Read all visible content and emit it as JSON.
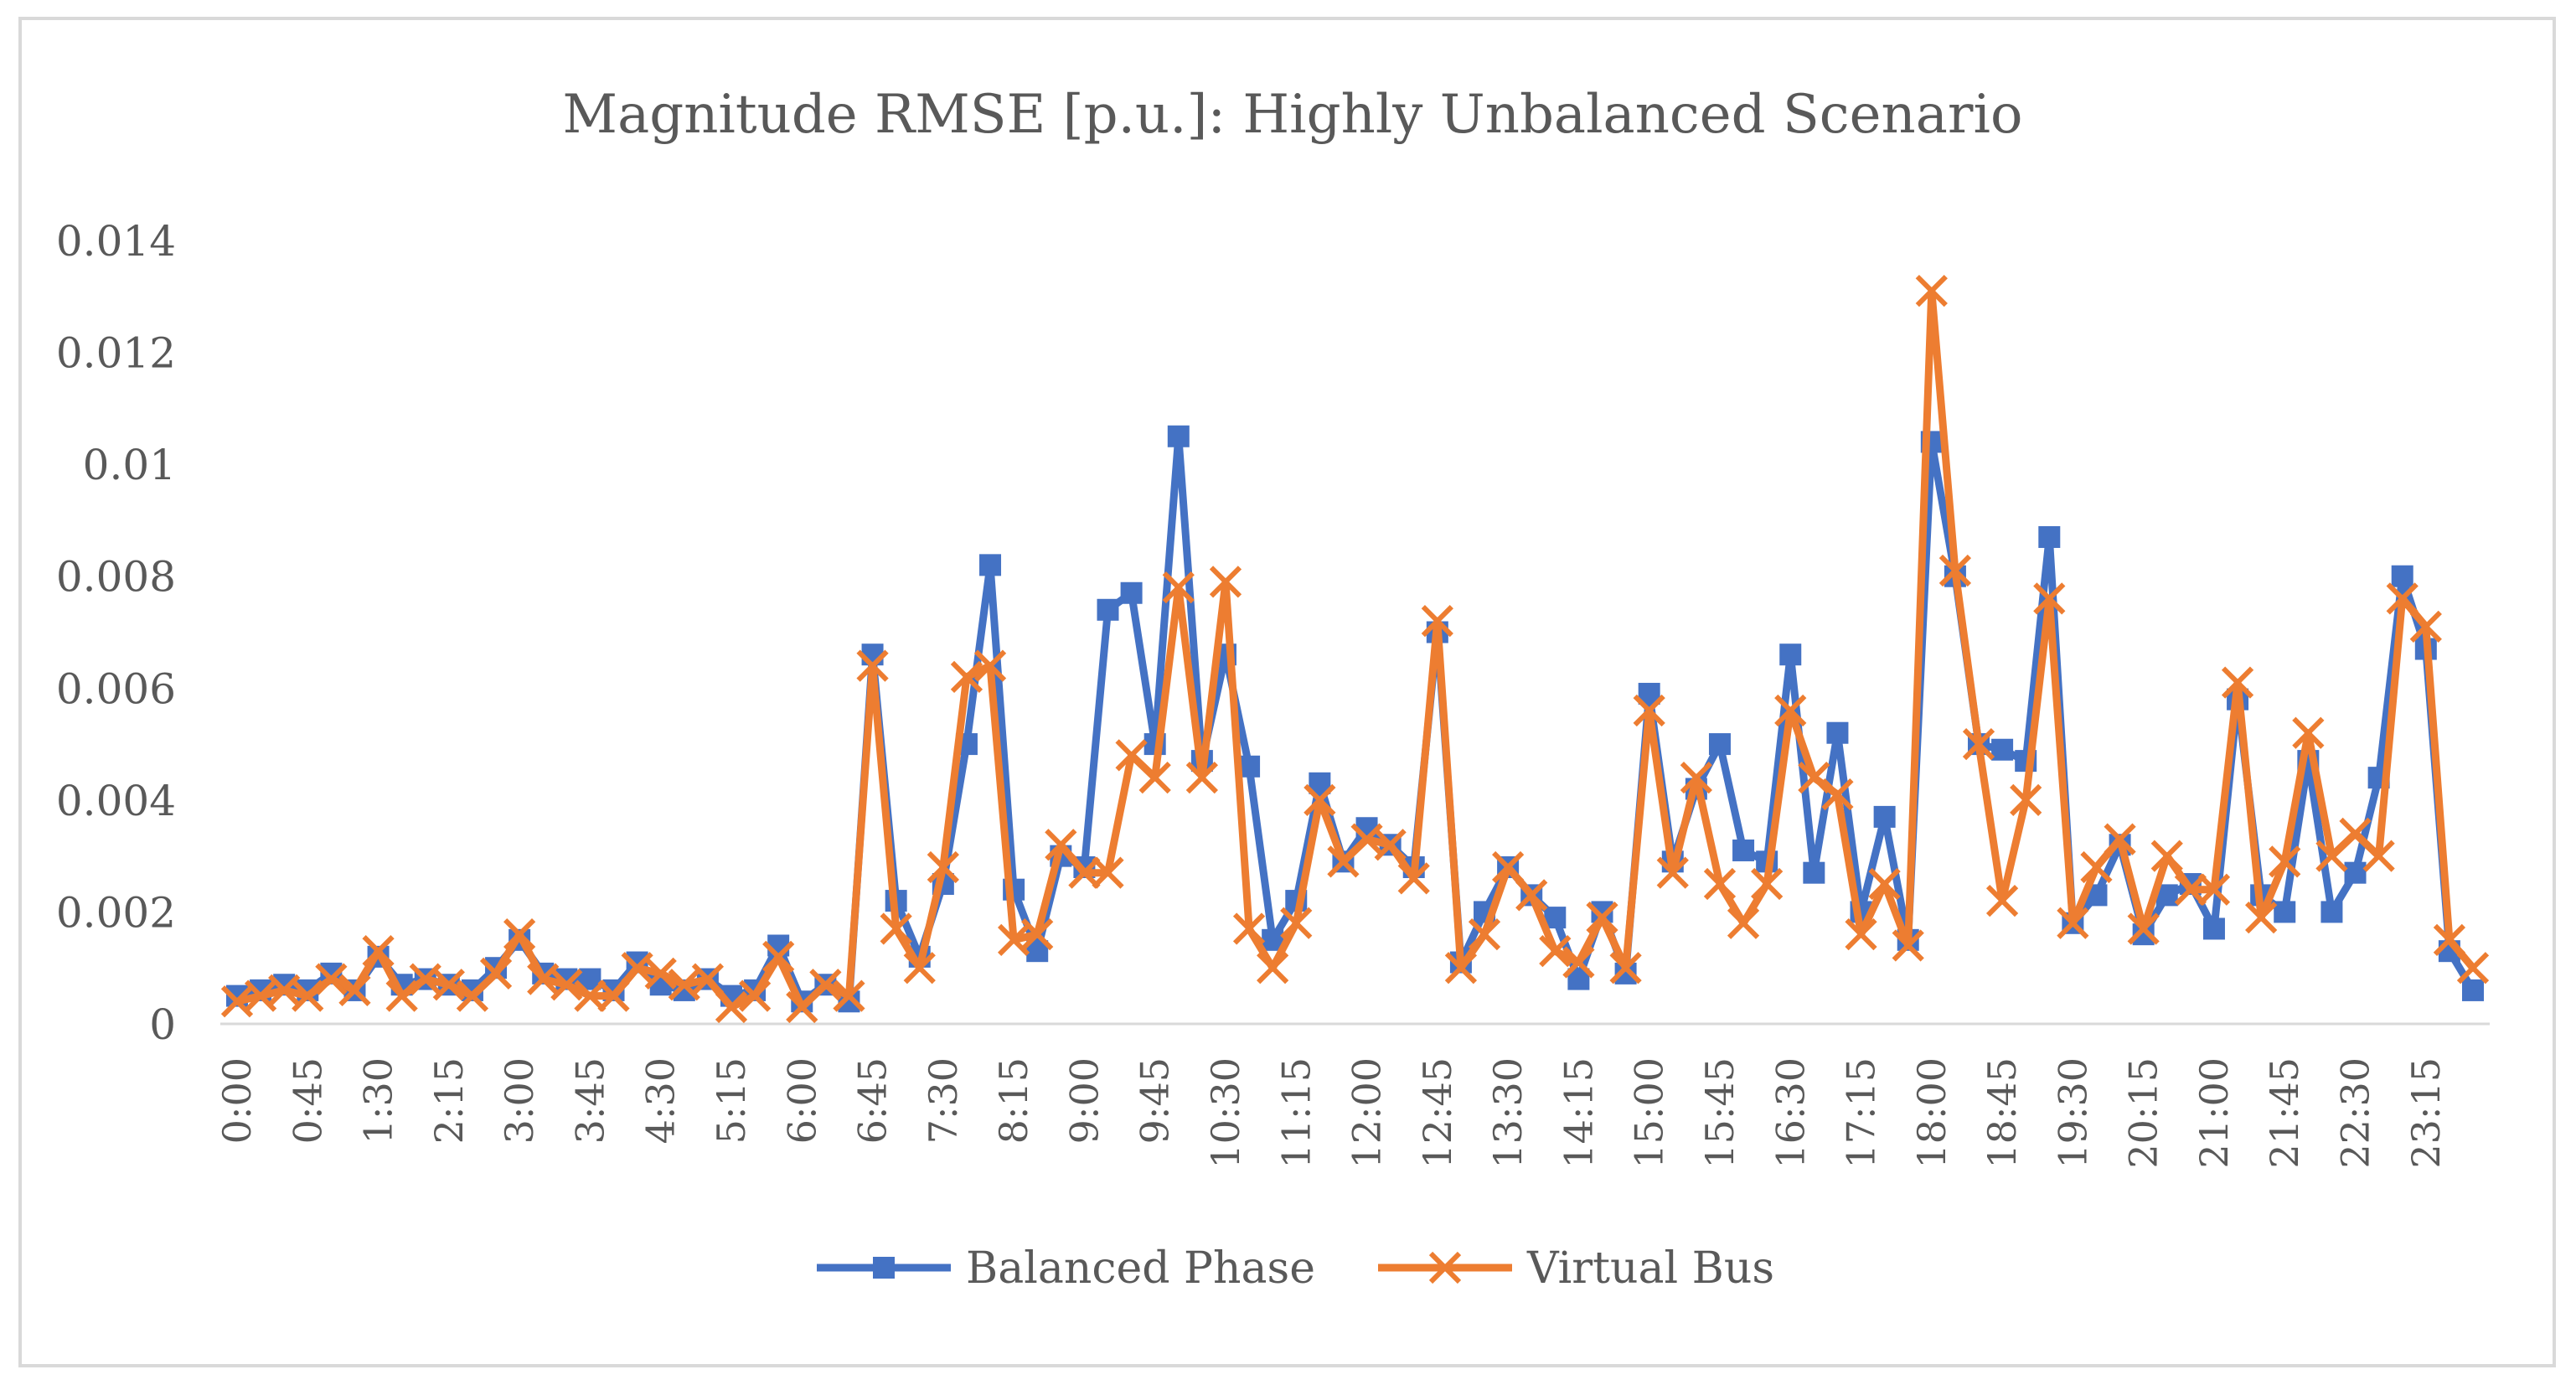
{
  "chart_data": {
    "type": "line",
    "title": "Magnitude RMSE [p.u.]: Highly Unbalanced Scenario",
    "xlabel": "",
    "ylabel": "",
    "ylim": [
      0,
      0.014
    ],
    "y_ticks": [
      "0",
      "0.002",
      "0.004",
      "0.006",
      "0.008",
      "0.01",
      "0.012",
      "0.014"
    ],
    "grid": false,
    "legend_position": "bottom",
    "x_tick_labels": [
      "0:00",
      "0:45",
      "1:30",
      "2:15",
      "3:00",
      "3:45",
      "4:30",
      "5:15",
      "6:00",
      "6:45",
      "7:30",
      "8:15",
      "9:00",
      "9:45",
      "10:30",
      "11:15",
      "12:00",
      "12:45",
      "13:30",
      "14:15",
      "15:00",
      "15:45",
      "16:30",
      "17:15",
      "18:00",
      "18:45",
      "19:30",
      "20:15",
      "21:00",
      "21:45",
      "22:30",
      "23:15"
    ],
    "x_points": 96,
    "x_step_minutes": 15,
    "series": [
      {
        "name": "Balanced Phase",
        "color": "#4472c4",
        "marker": "square",
        "values": [
          0.0005,
          0.0006,
          0.0007,
          0.0006,
          0.0009,
          0.0006,
          0.0012,
          0.0007,
          0.0008,
          0.0007,
          0.0006,
          0.001,
          0.0015,
          0.0009,
          0.0008,
          0.0008,
          0.0006,
          0.0011,
          0.0007,
          0.0006,
          0.0008,
          0.0005,
          0.0006,
          0.0014,
          0.0004,
          0.0007,
          0.0004,
          0.0066,
          0.0022,
          0.0012,
          0.0025,
          0.005,
          0.0082,
          0.0024,
          0.0013,
          0.003,
          0.0028,
          0.0074,
          0.0077,
          0.005,
          0.0105,
          0.0047,
          0.0066,
          0.0046,
          0.0015,
          0.0022,
          0.0043,
          0.0029,
          0.0035,
          0.0032,
          0.0028,
          0.007,
          0.0011,
          0.002,
          0.0028,
          0.0023,
          0.0019,
          0.0008,
          0.002,
          0.0009,
          0.0059,
          0.0029,
          0.0042,
          0.005,
          0.0031,
          0.0029,
          0.0066,
          0.0027,
          0.0052,
          0.002,
          0.0037,
          0.0015,
          0.0104,
          0.008,
          0.005,
          0.0049,
          0.0047,
          0.0087,
          0.0018,
          0.0023,
          0.0032,
          0.0016,
          0.0023,
          0.0025,
          0.0017,
          0.0058,
          0.0023,
          0.002,
          0.0047,
          0.002,
          0.0027,
          0.0044,
          0.008,
          0.0067,
          0.0013,
          0.0006
        ]
      },
      {
        "name": "Virtual Bus",
        "color": "#ed7d31",
        "marker": "x",
        "values": [
          0.0004,
          0.0005,
          0.0006,
          0.0005,
          0.0008,
          0.0006,
          0.0013,
          0.0005,
          0.0008,
          0.0007,
          0.0005,
          0.0009,
          0.0016,
          0.0008,
          0.0007,
          0.0005,
          0.0005,
          0.001,
          0.0009,
          0.0007,
          0.0008,
          0.0003,
          0.0005,
          0.0012,
          0.0003,
          0.0007,
          0.0005,
          0.0064,
          0.0017,
          0.001,
          0.0028,
          0.0062,
          0.0064,
          0.0015,
          0.0016,
          0.0032,
          0.0027,
          0.0027,
          0.0048,
          0.0044,
          0.0078,
          0.0044,
          0.0079,
          0.0017,
          0.001,
          0.0018,
          0.004,
          0.0029,
          0.0033,
          0.0032,
          0.0026,
          0.0072,
          0.001,
          0.0016,
          0.0028,
          0.0023,
          0.0013,
          0.0011,
          0.0019,
          0.001,
          0.0056,
          0.0027,
          0.0044,
          0.0025,
          0.0018,
          0.0025,
          0.0056,
          0.0044,
          0.0041,
          0.0016,
          0.0025,
          0.0014,
          0.0131,
          0.0081,
          0.005,
          0.0022,
          0.004,
          0.0076,
          0.0018,
          0.0028,
          0.0033,
          0.0017,
          0.003,
          0.0024,
          0.0024,
          0.0061,
          0.0019,
          0.0029,
          0.0052,
          0.003,
          0.0034,
          0.003,
          0.0076,
          0.0071,
          0.0015,
          0.001
        ]
      }
    ]
  }
}
